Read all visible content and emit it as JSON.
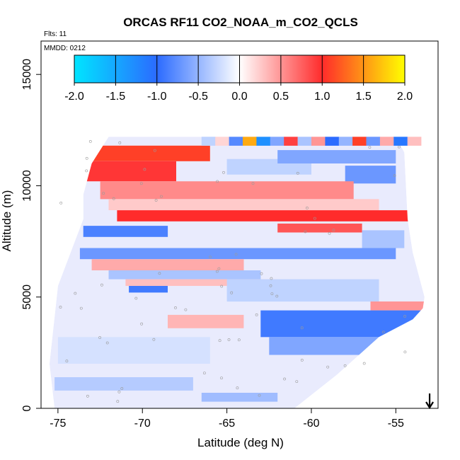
{
  "chart_data": {
    "type": "heatmap",
    "title": "ORCAS RF11 CO2_NOAA_m_CO2_QCLS",
    "flights_label": "Flts: 11",
    "date_label": "MMDD: 0212",
    "xlabel": "Latitude (deg N)",
    "ylabel": "Altitude (m)",
    "xlim": [
      -76,
      -52.5
    ],
    "ylim": [
      0,
      16500
    ],
    "x_ticks": [
      -75,
      -70,
      -65,
      -60,
      -55
    ],
    "y_ticks": [
      0,
      5000,
      10000,
      15000
    ],
    "colorbar": {
      "min": -2.0,
      "max": 2.0,
      "ticks": [
        "-2.0",
        "-1.5",
        "-1.0",
        "-0.5",
        "0.0",
        "0.5",
        "1.0",
        "1.5",
        "2.0"
      ],
      "colors": [
        "#00e5ff",
        "#2b6bff",
        "#ffffff",
        "#ff2b2b",
        "#ffff00"
      ]
    },
    "coverage_boundary": [
      [
        -75.2,
        0
      ],
      [
        -73.7,
        0
      ],
      [
        -61.0,
        0
      ],
      [
        -58.5,
        1500
      ],
      [
        -56.0,
        3200
      ],
      [
        -54.0,
        4000
      ],
      [
        -53.4,
        4500
      ],
      [
        -53.3,
        5000
      ],
      [
        -54.0,
        7000
      ],
      [
        -54.3,
        8500
      ],
      [
        -54.5,
        11500
      ],
      [
        -55.0,
        12200
      ],
      [
        -72.0,
        12200
      ],
      [
        -73.0,
        11000
      ],
      [
        -73.5,
        9600
      ],
      [
        -73.5,
        8500
      ],
      [
        -74.0,
        7500
      ],
      [
        -75.0,
        5500
      ],
      [
        -75.5,
        2000
      ]
    ],
    "cells": [
      {
        "lat": [
          -73.3,
          -66.0
        ],
        "alt": [
          11100,
          11800
        ],
        "value": 1.1
      },
      {
        "lat": [
          -73.5,
          -68.0
        ],
        "alt": [
          10200,
          11100
        ],
        "value": 0.95
      },
      {
        "lat": [
          -65.0,
          -60.0
        ],
        "alt": [
          10500,
          11200
        ],
        "value": -0.3
      },
      {
        "lat": [
          -62.0,
          -55.0
        ],
        "alt": [
          11000,
          11600
        ],
        "value": -0.6
      },
      {
        "lat": [
          -58.0,
          -55.0
        ],
        "alt": [
          10100,
          10900
        ],
        "value": -0.7
      },
      {
        "lat": [
          -72.5,
          -57.5
        ],
        "alt": [
          9400,
          10200
        ],
        "value": 0.55
      },
      {
        "lat": [
          -72.0,
          -56.0
        ],
        "alt": [
          8900,
          9400
        ],
        "value": 0.25
      },
      {
        "lat": [
          -71.5,
          -54.2
        ],
        "alt": [
          8400,
          8900
        ],
        "value": 1.0
      },
      {
        "lat": [
          -62.0,
          -57.0
        ],
        "alt": [
          7900,
          8300
        ],
        "value": 0.8
      },
      {
        "lat": [
          -73.5,
          -68.5
        ],
        "alt": [
          7700,
          8200
        ],
        "value": -0.85
      },
      {
        "lat": [
          -57.0,
          -54.5
        ],
        "alt": [
          7200,
          8000
        ],
        "value": -0.4
      },
      {
        "lat": [
          -73.7,
          -55.0
        ],
        "alt": [
          6700,
          7200
        ],
        "value": -0.7
      },
      {
        "lat": [
          -73.0,
          -64.0
        ],
        "alt": [
          6200,
          6700
        ],
        "value": 0.4
      },
      {
        "lat": [
          -72.0,
          -63.0
        ],
        "alt": [
          5800,
          6200
        ],
        "value": -0.4
      },
      {
        "lat": [
          -71.0,
          -62.0
        ],
        "alt": [
          5500,
          5800
        ],
        "value": 0.3
      },
      {
        "lat": [
          -70.8,
          -68.5
        ],
        "alt": [
          5200,
          5500
        ],
        "value": -0.9
      },
      {
        "lat": [
          -65.0,
          -56.0
        ],
        "alt": [
          4800,
          5800
        ],
        "value": -0.3
      },
      {
        "lat": [
          -56.5,
          -53.3
        ],
        "alt": [
          4400,
          4800
        ],
        "value": 0.5
      },
      {
        "lat": [
          -68.5,
          -64.0
        ],
        "alt": [
          3600,
          4200
        ],
        "value": 0.35
      },
      {
        "lat": [
          -63.0,
          -53.3
        ],
        "alt": [
          3200,
          4400
        ],
        "value": -0.9
      },
      {
        "lat": [
          -62.5,
          -56.0
        ],
        "alt": [
          2400,
          3200
        ],
        "value": -0.6
      },
      {
        "lat": [
          -75.0,
          -66.0
        ],
        "alt": [
          2000,
          3200
        ],
        "value": -0.2
      },
      {
        "lat": [
          -75.2,
          -67.0
        ],
        "alt": [
          800,
          1400
        ],
        "value": -0.35
      },
      {
        "lat": [
          -66.5,
          -62.0
        ],
        "alt": [
          300,
          700
        ],
        "value": -0.45
      }
    ],
    "top_band_values": [
      -0.3,
      0.2,
      -0.8,
      1.6,
      -1.3,
      -0.6,
      0.9,
      -0.4,
      0.5,
      -1.0,
      -0.5,
      1.1,
      -0.7,
      0.4,
      -1.1,
      0.3
    ],
    "top_band_lat": [
      -66.5,
      -53.5
    ],
    "top_band_alt": [
      11800,
      12200
    ],
    "arrow": {
      "lat": -53.0,
      "direction": "down"
    }
  }
}
